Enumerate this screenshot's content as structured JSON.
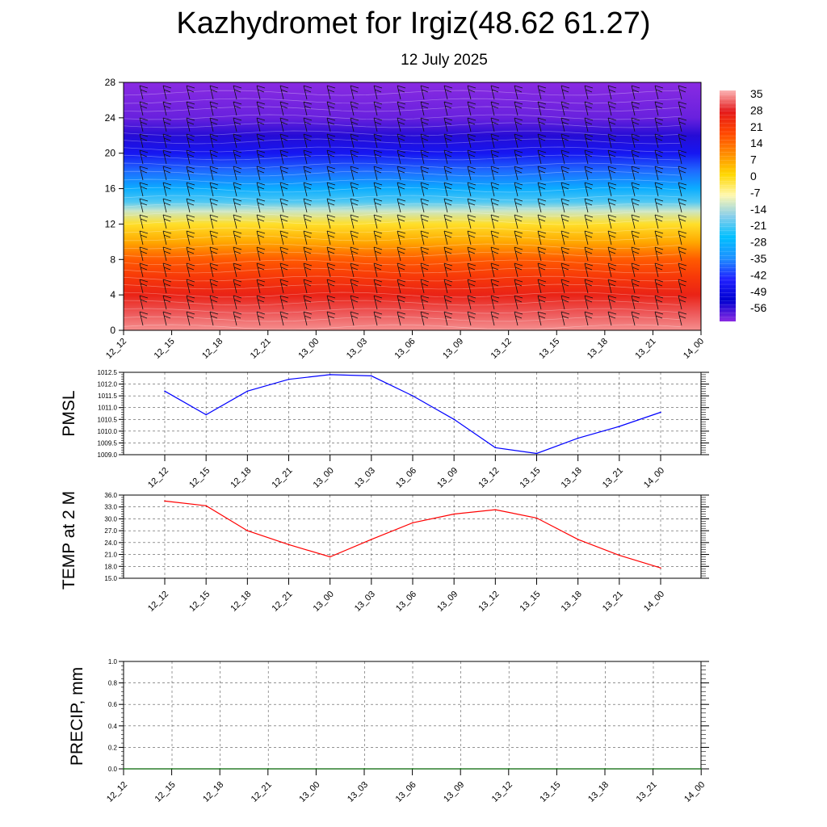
{
  "title": "Kazhydromet for Irgiz(48.62 61.27)",
  "subtitle": "12 July 2025",
  "chart_data": [
    {
      "type": "heatmap",
      "x_ticks": [
        "12_12",
        "12_15",
        "12_18",
        "12_21",
        "13_00",
        "13_03",
        "13_06",
        "13_09",
        "13_12",
        "13_15",
        "13_18",
        "13_21",
        "14_00"
      ],
      "y_ticks": [
        "0",
        "4",
        "8",
        "12",
        "16",
        "20",
        "24",
        "28"
      ],
      "ylim": [
        0,
        28
      ],
      "colorbar_labels": [
        "35",
        "28",
        "21",
        "14",
        "7",
        "0",
        "-7",
        "-14",
        "-21",
        "-28",
        "-35",
        "-42",
        "-49",
        "-56"
      ],
      "colors": [
        "#fbb4b4",
        "#e41a1c",
        "#ff4500",
        "#ff8c00",
        "#ffd700",
        "#fff8b0",
        "#87ceeb",
        "#00bfff",
        "#1e90ff",
        "#2020ff",
        "#0000d0",
        "#8a2be2"
      ],
      "temperature_profile": [
        {
          "height": 0,
          "value": 33
        },
        {
          "height": 2,
          "value": 30
        },
        {
          "height": 4,
          "value": 25
        },
        {
          "height": 6,
          "value": 21
        },
        {
          "height": 8,
          "value": 16
        },
        {
          "height": 10,
          "value": 7
        },
        {
          "height": 12,
          "value": 0
        },
        {
          "height": 13.5,
          "value": -10
        },
        {
          "height": 14.5,
          "value": -18
        },
        {
          "height": 16,
          "value": -26
        },
        {
          "height": 18,
          "value": -34
        },
        {
          "height": 20,
          "value": -42
        },
        {
          "height": 22,
          "value": -50
        },
        {
          "height": 24,
          "value": -54
        },
        {
          "height": 26,
          "value": -55
        },
        {
          "height": 28,
          "value": -56
        }
      ],
      "has_wind_barbs": true
    },
    {
      "type": "line",
      "ylabel": "PMSL",
      "categories": [
        "12_12",
        "12_15",
        "12_18",
        "12_21",
        "13_00",
        "13_03",
        "13_06",
        "13_09",
        "13_12",
        "13_15",
        "13_18",
        "13_21",
        "14_00"
      ],
      "values": [
        1011.7,
        1010.7,
        1011.7,
        1012.2,
        1012.4,
        1012.35,
        1011.5,
        1010.5,
        1009.3,
        1009.05,
        1009.7,
        1010.2,
        1010.8
      ],
      "ylim": [
        1009.0,
        1012.5
      ],
      "yticks": [
        "1009.0",
        "1009.5",
        "1010.0",
        "1010.5",
        "1011.0",
        "1011.5",
        "1012.0",
        "1012.5"
      ],
      "color": "#0000ff",
      "grid": true
    },
    {
      "type": "line",
      "ylabel": "TEMP at 2 M",
      "categories": [
        "12_12",
        "12_15",
        "12_18",
        "12_21",
        "13_00",
        "13_03",
        "13_06",
        "13_09",
        "13_12",
        "13_15",
        "13_18",
        "13_21",
        "14_00"
      ],
      "values": [
        34.5,
        33.3,
        27.0,
        23.5,
        20.4,
        24.8,
        29.0,
        31.2,
        32.3,
        30.2,
        24.8,
        20.8,
        17.6
      ],
      "ylim": [
        15.0,
        36.0
      ],
      "yticks": [
        "15.0",
        "18.0",
        "21.0",
        "24.0",
        "27.0",
        "30.0",
        "33.0",
        "36.0"
      ],
      "color": "#ff0000",
      "grid": true
    },
    {
      "type": "line",
      "ylabel": "PRECIP, mm",
      "categories": [
        "12_12",
        "12_15",
        "12_18",
        "12_21",
        "13_00",
        "13_03",
        "13_06",
        "13_09",
        "13_12",
        "13_15",
        "13_18",
        "13_21",
        "14_00"
      ],
      "values": [
        0,
        0,
        0,
        0,
        0,
        0,
        0,
        0,
        0,
        0,
        0,
        0,
        0
      ],
      "ylim": [
        0.0,
        1.0
      ],
      "yticks": [
        "0.0",
        "0.2",
        "0.4",
        "0.6",
        "0.8",
        "1.0"
      ],
      "color": "#006400",
      "grid": true
    }
  ]
}
